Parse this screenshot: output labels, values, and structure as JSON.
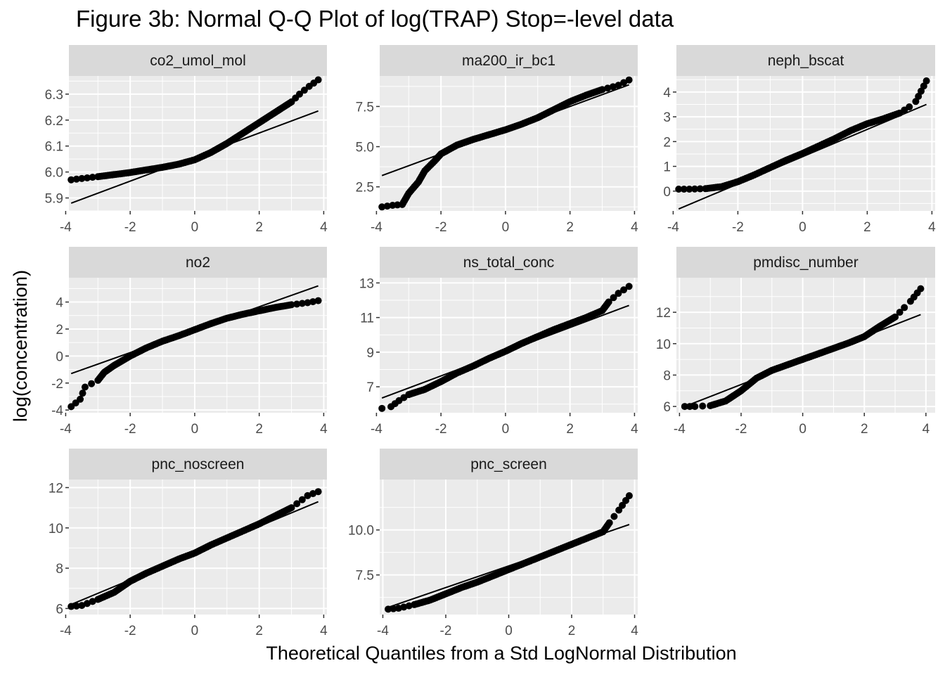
{
  "title": "Figure 3b: Normal Q-Q Plot of log(TRAP) Stop=-level data",
  "xlabel": "Theoretical Quantiles from a Std LogNormal Distribution",
  "ylabel": "log(concentration)",
  "colors": {
    "panel_bg": "#ebebeb",
    "strip_bg": "#d9d9d9",
    "grid": "#ffffff",
    "points": "#000000",
    "line": "#000000",
    "tick_text": "#4d4d4d"
  },
  "chart_data": {
    "type": "scatter",
    "facet_layout": "3 columns x 3 rows",
    "grid": true,
    "panels": [
      {
        "name": "co2_umol_mol",
        "xlim": [
          -3.9,
          4.1
        ],
        "ylim": [
          5.85,
          6.37
        ],
        "xticks": [
          "-4",
          "-2",
          "0",
          "2",
          "4"
        ],
        "yticks": [
          "5.9",
          "6.0",
          "6.1",
          "6.2",
          "6.3"
        ],
        "ytick_values": [
          5.9,
          6.0,
          6.1,
          6.2,
          6.3
        ],
        "qq_points": [
          [
            -3.83,
            5.97
          ],
          [
            -3.5,
            5.975
          ],
          [
            -3,
            5.982
          ],
          [
            -2.5,
            5.99
          ],
          [
            -2,
            5.998
          ],
          [
            -1.5,
            6.008
          ],
          [
            -1,
            6.018
          ],
          [
            -0.5,
            6.03
          ],
          [
            0,
            6.047
          ],
          [
            0.5,
            6.075
          ],
          [
            1,
            6.11
          ],
          [
            1.5,
            6.15
          ],
          [
            2,
            6.19
          ],
          [
            2.5,
            6.23
          ],
          [
            3,
            6.27
          ],
          [
            3.25,
            6.3
          ],
          [
            3.55,
            6.33
          ],
          [
            3.83,
            6.355
          ]
        ],
        "ref_line": [
          [
            -3.83,
            5.88
          ],
          [
            3.83,
            6.235
          ]
        ]
      },
      {
        "name": "ma200_ir_bc1",
        "xlim": [
          -3.9,
          4.1
        ],
        "ylim": [
          1.0,
          9.4
        ],
        "xticks": [
          "-4",
          "-2",
          "0",
          "2",
          "4"
        ],
        "yticks": [
          "2.5",
          "5.0",
          "7.5"
        ],
        "ytick_values": [
          2.5,
          5.0,
          7.5
        ],
        "qq_points": [
          [
            -3.83,
            1.25
          ],
          [
            -3.5,
            1.35
          ],
          [
            -3.2,
            1.4
          ],
          [
            -3,
            2.1
          ],
          [
            -2.7,
            2.8
          ],
          [
            -2.5,
            3.5
          ],
          [
            -2.2,
            4.1
          ],
          [
            -2,
            4.55
          ],
          [
            -1.5,
            5.1
          ],
          [
            -1,
            5.45
          ],
          [
            -0.5,
            5.75
          ],
          [
            0,
            6.05
          ],
          [
            0.5,
            6.4
          ],
          [
            1,
            6.8
          ],
          [
            1.5,
            7.3
          ],
          [
            2,
            7.8
          ],
          [
            2.5,
            8.2
          ],
          [
            3,
            8.55
          ],
          [
            3.5,
            8.82
          ],
          [
            3.83,
            9.15
          ]
        ],
        "ref_line": [
          [
            -3.83,
            3.2
          ],
          [
            3.83,
            8.85
          ]
        ]
      },
      {
        "name": "neph_bscat",
        "xlim": [
          -3.9,
          4.1
        ],
        "ylim": [
          -0.8,
          4.65
        ],
        "xticks": [
          "-4",
          "-2",
          "0",
          "2",
          "4"
        ],
        "yticks": [
          "0",
          "1",
          "2",
          "3",
          "4"
        ],
        "ytick_values": [
          0,
          1,
          2,
          3,
          4
        ],
        "qq_points": [
          [
            -3.83,
            0.08
          ],
          [
            -3.5,
            0.08
          ],
          [
            -3,
            0.1
          ],
          [
            -2.5,
            0.18
          ],
          [
            -2,
            0.38
          ],
          [
            -1.5,
            0.65
          ],
          [
            -1,
            0.95
          ],
          [
            -0.5,
            1.25
          ],
          [
            0,
            1.52
          ],
          [
            0.5,
            1.82
          ],
          [
            1,
            2.12
          ],
          [
            1.5,
            2.45
          ],
          [
            2,
            2.72
          ],
          [
            2.5,
            2.92
          ],
          [
            3,
            3.15
          ],
          [
            3.3,
            3.4
          ],
          [
            3.5,
            3.62
          ],
          [
            3.83,
            4.45
          ]
        ],
        "ref_line": [
          [
            -3.83,
            -0.72
          ],
          [
            3.83,
            3.5
          ]
        ]
      },
      {
        "name": "no2",
        "xlim": [
          -3.9,
          4.1
        ],
        "ylim": [
          -4.2,
          5.8
        ],
        "xticks": [
          "-4",
          "-2",
          "0",
          "2",
          "4"
        ],
        "yticks": [
          "-4",
          "-2",
          "0",
          "2",
          "4"
        ],
        "ytick_values": [
          -4,
          -2,
          0,
          2,
          4
        ],
        "qq_points": [
          [
            -3.83,
            -3.75
          ],
          [
            -3.55,
            -3.2
          ],
          [
            -3.4,
            -2.3
          ],
          [
            -3,
            -1.8
          ],
          [
            -2.8,
            -1.2
          ],
          [
            -2.5,
            -0.7
          ],
          [
            -2,
            0.0
          ],
          [
            -1.5,
            0.6
          ],
          [
            -1,
            1.1
          ],
          [
            -0.5,
            1.5
          ],
          [
            0,
            1.95
          ],
          [
            0.5,
            2.4
          ],
          [
            1,
            2.8
          ],
          [
            1.5,
            3.1
          ],
          [
            2,
            3.35
          ],
          [
            2.5,
            3.6
          ],
          [
            3,
            3.8
          ],
          [
            3.5,
            3.95
          ],
          [
            3.83,
            4.1
          ]
        ],
        "ref_line": [
          [
            -3.83,
            -1.3
          ],
          [
            3.83,
            5.2
          ]
        ]
      },
      {
        "name": "ns_total_conc",
        "xlim": [
          -3.9,
          4.1
        ],
        "ylim": [
          5.5,
          13.3
        ],
        "xticks": [
          "-4",
          "-2",
          "0",
          "2",
          "4"
        ],
        "yticks": [
          "7",
          "9",
          "11",
          "13"
        ],
        "ytick_values": [
          7,
          9,
          11,
          13
        ],
        "qq_points": [
          [
            -3.83,
            5.75
          ],
          [
            -3.55,
            5.85
          ],
          [
            -3.3,
            6.2
          ],
          [
            -3,
            6.55
          ],
          [
            -2.5,
            6.85
          ],
          [
            -2,
            7.3
          ],
          [
            -1.5,
            7.8
          ],
          [
            -1,
            8.2
          ],
          [
            -0.5,
            8.65
          ],
          [
            0,
            9.05
          ],
          [
            0.5,
            9.5
          ],
          [
            1,
            9.9
          ],
          [
            1.5,
            10.3
          ],
          [
            2,
            10.65
          ],
          [
            2.5,
            11.0
          ],
          [
            3,
            11.4
          ],
          [
            3.2,
            11.9
          ],
          [
            3.5,
            12.4
          ],
          [
            3.83,
            12.8
          ]
        ],
        "ref_line": [
          [
            -3.83,
            6.35
          ],
          [
            3.83,
            11.7
          ]
        ]
      },
      {
        "name": "pmdisc_number",
        "xlim": [
          -4.1,
          4.3
        ],
        "ylim": [
          5.6,
          14.2
        ],
        "xticks": [
          "-4",
          "-2",
          "0",
          "2",
          "4"
        ],
        "yticks": [
          "6",
          "8",
          "10",
          "12"
        ],
        "ytick_values": [
          6,
          8,
          10,
          12
        ],
        "qq_points": [
          [
            -3.83,
            6.0
          ],
          [
            -3.5,
            6.0
          ],
          [
            -3,
            6.05
          ],
          [
            -2.5,
            6.35
          ],
          [
            -2,
            7.0
          ],
          [
            -1.5,
            7.8
          ],
          [
            -1,
            8.3
          ],
          [
            -0.5,
            8.65
          ],
          [
            0,
            9.0
          ],
          [
            0.5,
            9.35
          ],
          [
            1,
            9.7
          ],
          [
            1.5,
            10.05
          ],
          [
            2,
            10.45
          ],
          [
            2.5,
            11.1
          ],
          [
            3,
            11.7
          ],
          [
            3.3,
            12.3
          ],
          [
            3.5,
            12.7
          ],
          [
            3.83,
            13.5
          ]
        ],
        "ref_line": [
          [
            -3.83,
            6.0
          ],
          [
            3.83,
            11.85
          ]
        ]
      },
      {
        "name": "pnc_noscreen",
        "xlim": [
          -3.9,
          4.1
        ],
        "ylim": [
          5.7,
          12.4
        ],
        "xticks": [
          "-4",
          "-2",
          "0",
          "2",
          "4"
        ],
        "yticks": [
          "6",
          "8",
          "10",
          "12"
        ],
        "ytick_values": [
          6,
          8,
          10,
          12
        ],
        "qq_points": [
          [
            -3.83,
            6.1
          ],
          [
            -3.5,
            6.15
          ],
          [
            -3,
            6.45
          ],
          [
            -2.5,
            6.8
          ],
          [
            -2,
            7.35
          ],
          [
            -1.5,
            7.75
          ],
          [
            -1,
            8.1
          ],
          [
            -0.5,
            8.45
          ],
          [
            0,
            8.75
          ],
          [
            0.5,
            9.15
          ],
          [
            1,
            9.5
          ],
          [
            1.5,
            9.85
          ],
          [
            2,
            10.2
          ],
          [
            2.5,
            10.6
          ],
          [
            3,
            11.0
          ],
          [
            3.5,
            11.6
          ],
          [
            3.83,
            11.8
          ]
        ],
        "ref_line": [
          [
            -3.83,
            6.2
          ],
          [
            3.83,
            11.3
          ]
        ]
      },
      {
        "name": "pnc_screen",
        "xlim": [
          -4.1,
          4.1
        ],
        "ylim": [
          5.3,
          12.8
        ],
        "xticks": [
          "-4",
          "-2",
          "0",
          "2",
          "4"
        ],
        "yticks": [
          "7.5",
          "10.0"
        ],
        "ytick_values": [
          7.5,
          10.0
        ],
        "qq_points": [
          [
            -3.83,
            5.6
          ],
          [
            -3.5,
            5.65
          ],
          [
            -3,
            5.85
          ],
          [
            -2.5,
            6.1
          ],
          [
            -2,
            6.45
          ],
          [
            -1.5,
            6.8
          ],
          [
            -1,
            7.1
          ],
          [
            -0.5,
            7.45
          ],
          [
            0,
            7.8
          ],
          [
            0.5,
            8.15
          ],
          [
            1,
            8.5
          ],
          [
            1.5,
            8.85
          ],
          [
            2,
            9.2
          ],
          [
            2.5,
            9.55
          ],
          [
            3,
            9.9
          ],
          [
            3.2,
            10.4
          ],
          [
            3.5,
            11.1
          ],
          [
            3.83,
            11.9
          ]
        ],
        "ref_line": [
          [
            -3.83,
            5.7
          ],
          [
            3.83,
            10.3
          ]
        ]
      }
    ]
  }
}
